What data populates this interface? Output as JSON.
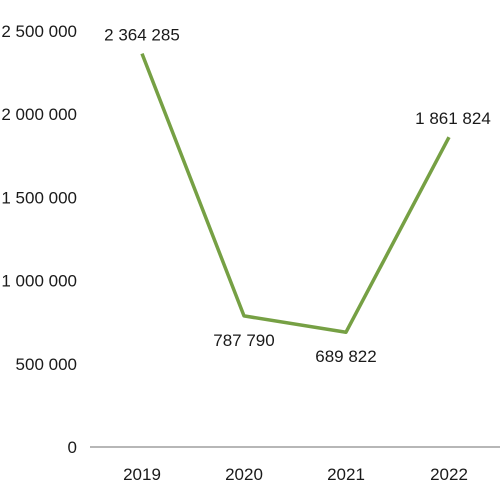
{
  "chart_data": {
    "type": "line",
    "categories": [
      "2019",
      "2020",
      "2021",
      "2022"
    ],
    "series": [
      {
        "values": [
          2364285,
          787790,
          689822,
          1861824
        ],
        "labels": [
          "2 364 285",
          "787 790",
          "689 822",
          "1 861 824"
        ],
        "color": "#76a044"
      }
    ],
    "ylim": [
      0,
      2500000
    ],
    "yticks": [
      0,
      500000,
      1000000,
      1500000,
      2000000,
      2500000
    ],
    "ytick_labels": [
      "0",
      "500 000",
      "1 000 000",
      "1 500 000",
      "2 000 000",
      "2 500 000"
    ],
    "grid": false,
    "axis_color": "#8c8c8c"
  }
}
